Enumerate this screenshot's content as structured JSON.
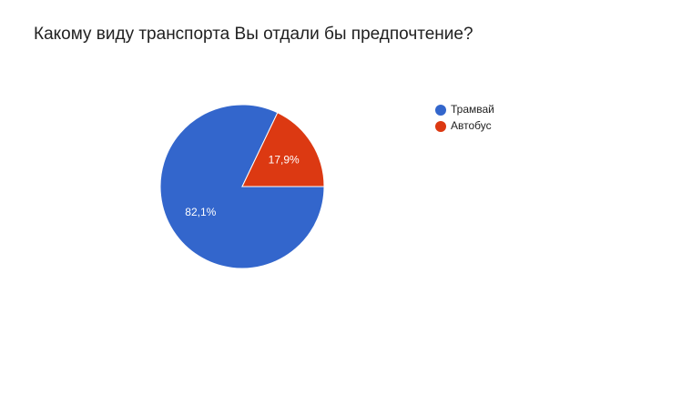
{
  "chart_data": {
    "type": "pie",
    "title": "Какому виду транспорта Вы отдали бы предпочтение?",
    "categories": [
      "Трамвай",
      "Автобус"
    ],
    "values": [
      82.1,
      17.9
    ],
    "value_labels": [
      "82,1%",
      "17,9%"
    ],
    "colors": [
      "#3366cc",
      "#dc3912"
    ],
    "legend": "right"
  }
}
